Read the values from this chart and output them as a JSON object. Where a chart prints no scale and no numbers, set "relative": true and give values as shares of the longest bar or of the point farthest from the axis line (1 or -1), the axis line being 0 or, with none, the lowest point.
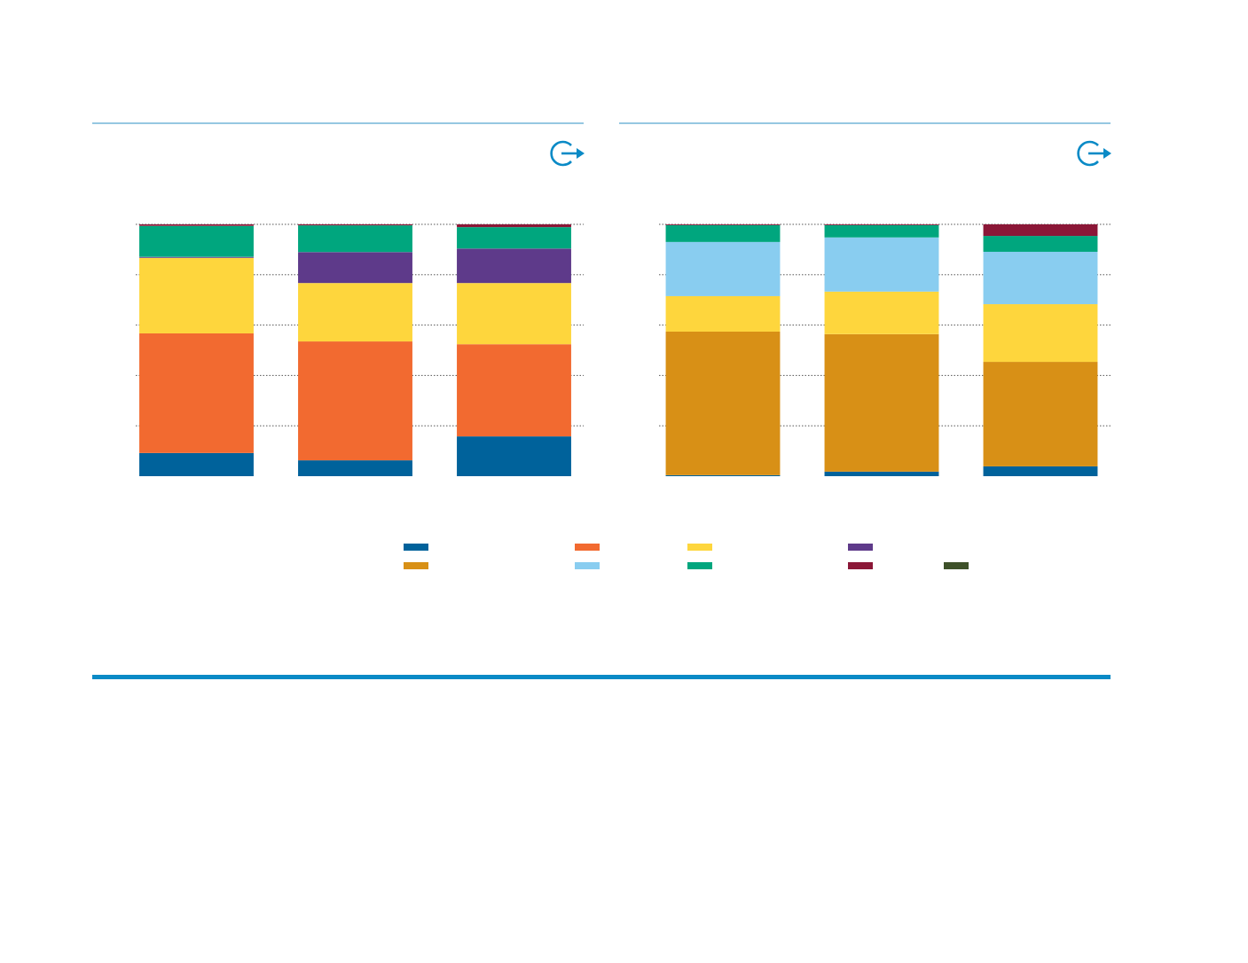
{
  "chart_data": [
    {
      "type": "bar",
      "stacked": true,
      "relative": true,
      "grid": "y",
      "categories": [
        null,
        null,
        null
      ],
      "series": [
        {
          "color": "#00629b",
          "values": [
            0.092,
            0.063,
            0.158
          ]
        },
        {
          "color": "#f26a30",
          "values": [
            0.475,
            0.472,
            0.366
          ]
        },
        {
          "color": "#fed63d",
          "values": [
            0.3,
            0.232,
            0.243
          ]
        },
        {
          "color": "#5e3a8a",
          "values": [
            0.004,
            0.123,
            0.137
          ]
        },
        {
          "color": "#00a67e",
          "values": [
            0.123,
            0.106,
            0.085
          ]
        },
        {
          "color": "#8b1737",
          "values": [
            0.006,
            0.004,
            0.011
          ]
        }
      ]
    },
    {
      "type": "bar",
      "stacked": true,
      "relative": true,
      "grid": "y",
      "categories": [
        null,
        null,
        null
      ],
      "series": [
        {
          "color": "#00629b",
          "values": [
            0.004,
            0.018,
            0.039
          ]
        },
        {
          "color": "#d89016",
          "values": [
            0.57,
            0.546,
            0.415
          ]
        },
        {
          "color": "#fed63d",
          "values": [
            0.141,
            0.169,
            0.229
          ]
        },
        {
          "color": "#89cdf0",
          "values": [
            0.215,
            0.215,
            0.208
          ]
        },
        {
          "color": "#00a67e",
          "values": [
            0.067,
            0.049,
            0.063
          ]
        },
        {
          "color": "#8b1737",
          "values": [
            0.003,
            0.003,
            0.046
          ]
        }
      ]
    }
  ]
}
